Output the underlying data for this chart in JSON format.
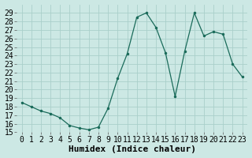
{
  "x": [
    0,
    1,
    2,
    3,
    4,
    5,
    6,
    7,
    8,
    9,
    10,
    11,
    12,
    13,
    14,
    15,
    16,
    17,
    18,
    19,
    20,
    21,
    22,
    23
  ],
  "y": [
    18.5,
    18.0,
    17.5,
    17.2,
    16.7,
    15.8,
    15.5,
    15.3,
    15.6,
    17.8,
    21.3,
    24.2,
    28.5,
    29.0,
    27.3,
    24.3,
    19.2,
    24.5,
    29.0,
    26.3,
    26.8,
    26.5,
    23.0,
    21.5
  ],
  "line_color": "#1a6b5a",
  "marker": ".",
  "marker_size": 3,
  "bg_color": "#cce8e4",
  "grid_color": "#aacfca",
  "xlabel": "Humidex (Indice chaleur)",
  "xlabel_fontsize": 8,
  "tick_fontsize": 7,
  "xlim": [
    -0.5,
    23.5
  ],
  "ylim": [
    15,
    30
  ],
  "yticks": [
    15,
    16,
    17,
    18,
    19,
    20,
    21,
    22,
    23,
    24,
    25,
    26,
    27,
    28,
    29
  ],
  "xticks": [
    0,
    1,
    2,
    3,
    4,
    5,
    6,
    7,
    8,
    9,
    10,
    11,
    12,
    13,
    14,
    15,
    16,
    17,
    18,
    19,
    20,
    21,
    22,
    23
  ]
}
